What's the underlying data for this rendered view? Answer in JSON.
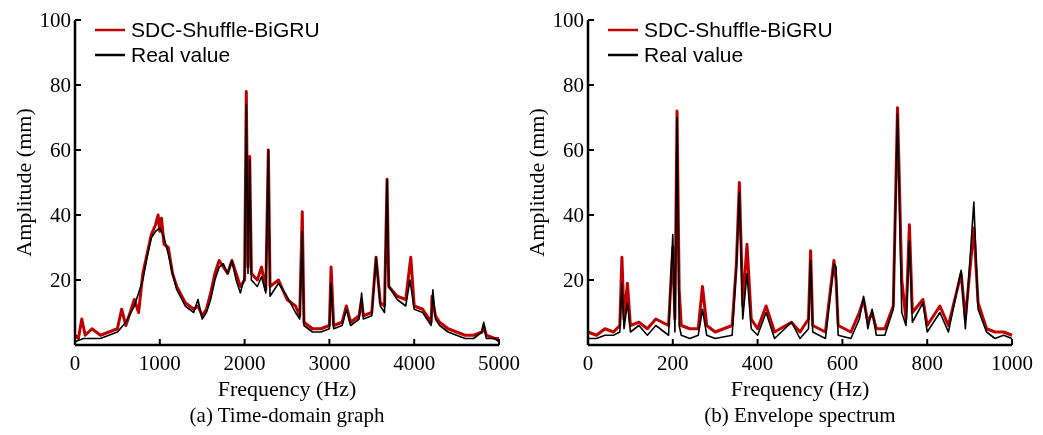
{
  "chart_data": [
    {
      "type": "line",
      "title": "(a) Time-domain graph",
      "xlabel": "Frequency (Hz)",
      "ylabel": "Amplitude (mm)",
      "xlim": [
        0,
        5000
      ],
      "xticks": [
        0,
        1000,
        2000,
        3000,
        4000,
        5000
      ],
      "ylim": [
        0,
        100
      ],
      "yticks": [
        20,
        40,
        60,
        80,
        100
      ],
      "grid": false,
      "legend": "top left",
      "line_style": "solid",
      "series": [
        {
          "name": "SDC-Shuffle-BiGRU",
          "color": "#c00000",
          "x": [
            0,
            40,
            80,
            120,
            200,
            300,
            400,
            500,
            550,
            600,
            700,
            750,
            800,
            850,
            900,
            950,
            980,
            1000,
            1020,
            1050,
            1100,
            1150,
            1200,
            1300,
            1400,
            1450,
            1500,
            1550,
            1600,
            1650,
            1700,
            1750,
            1800,
            1850,
            1900,
            1950,
            2000,
            2020,
            2040,
            2060,
            2080,
            2150,
            2200,
            2250,
            2280,
            2300,
            2400,
            2500,
            2600,
            2650,
            2680,
            2700,
            2800,
            2900,
            3000,
            3020,
            3050,
            3150,
            3200,
            3250,
            3350,
            3380,
            3400,
            3500,
            3550,
            3600,
            3650,
            3680,
            3700,
            3800,
            3900,
            3960,
            4000,
            4100,
            4200,
            4210,
            4250,
            4300,
            4400,
            4500,
            4600,
            4700,
            4800,
            4820,
            4850,
            4950,
            5000
          ],
          "values": [
            3,
            2,
            8,
            3,
            5,
            3,
            4,
            5,
            11,
            6,
            14,
            10,
            22,
            28,
            34,
            37,
            40,
            35,
            39,
            31,
            30,
            22,
            18,
            13,
            11,
            12,
            9,
            11,
            16,
            22,
            26,
            24,
            22,
            26,
            22,
            18,
            20,
            78,
            24,
            58,
            22,
            20,
            24,
            17,
            60,
            18,
            20,
            14,
            12,
            9,
            41,
            7,
            5,
            5,
            6,
            24,
            6,
            7,
            12,
            7,
            9,
            14,
            9,
            10,
            27,
            13,
            12,
            51,
            18,
            15,
            14,
            27,
            12,
            11,
            7,
            15,
            9,
            7,
            5,
            4,
            3,
            3,
            4,
            6,
            3,
            2,
            2
          ]
        },
        {
          "name": "Real value",
          "color": "#000000",
          "x": [
            0,
            100,
            200,
            300,
            400,
            500,
            600,
            700,
            800,
            850,
            900,
            950,
            1000,
            1050,
            1100,
            1150,
            1200,
            1300,
            1400,
            1450,
            1500,
            1550,
            1600,
            1650,
            1700,
            1750,
            1800,
            1850,
            1900,
            1950,
            2000,
            2020,
            2040,
            2060,
            2080,
            2150,
            2200,
            2250,
            2280,
            2300,
            2400,
            2500,
            2600,
            2650,
            2680,
            2700,
            2800,
            2900,
            3000,
            3020,
            3050,
            3150,
            3200,
            3250,
            3350,
            3380,
            3400,
            3500,
            3550,
            3600,
            3650,
            3680,
            3700,
            3800,
            3900,
            3950,
            4000,
            4100,
            4200,
            4220,
            4250,
            4300,
            4400,
            4500,
            4600,
            4700,
            4800,
            4820,
            4850,
            4950,
            5000
          ],
          "values": [
            1,
            2,
            2,
            2,
            3,
            4,
            7,
            12,
            20,
            27,
            33,
            35,
            36,
            33,
            28,
            22,
            17,
            12,
            10,
            14,
            8,
            10,
            14,
            20,
            24,
            25,
            22,
            26,
            20,
            16,
            21,
            74,
            22,
            57,
            20,
            18,
            21,
            16,
            60,
            15,
            19,
            15,
            10,
            8,
            35,
            6,
            4,
            4,
            5,
            19,
            5,
            6,
            11,
            6,
            8,
            16,
            8,
            9,
            27,
            12,
            10,
            51,
            18,
            14,
            12,
            20,
            11,
            10,
            6,
            17,
            8,
            6,
            4,
            3,
            2,
            2,
            4,
            7,
            2,
            2,
            1
          ]
        }
      ]
    },
    {
      "type": "line",
      "title": "(b) Envelope spectrum",
      "xlabel": "Frequency (Hz)",
      "ylabel": "Amplitude (mm)",
      "xlim": [
        0,
        1000
      ],
      "xticks": [
        0,
        200,
        400,
        600,
        800,
        1000
      ],
      "ylim": [
        0,
        100
      ],
      "yticks": [
        20,
        40,
        60,
        80,
        100
      ],
      "grid": false,
      "legend": "top left",
      "line_style": "solid",
      "series": [
        {
          "name": "SDC-Shuffle-BiGRU",
          "color": "#c00000",
          "x": [
            0,
            20,
            40,
            60,
            75,
            80,
            85,
            93,
            100,
            120,
            140,
            160,
            190,
            200,
            205,
            210,
            215,
            220,
            240,
            260,
            270,
            280,
            300,
            340,
            350,
            357,
            365,
            375,
            385,
            400,
            420,
            440,
            480,
            500,
            520,
            525,
            530,
            560,
            580,
            585,
            590,
            620,
            640,
            650,
            660,
            670,
            680,
            700,
            720,
            730,
            740,
            750,
            758,
            765,
            790,
            800,
            830,
            850,
            880,
            890,
            910,
            920,
            940,
            960,
            980,
            1000
          ],
          "values": [
            4,
            3,
            5,
            4,
            6,
            27,
            8,
            19,
            6,
            7,
            5,
            8,
            6,
            30,
            8,
            72,
            17,
            6,
            5,
            5,
            18,
            6,
            4,
            6,
            25,
            50,
            12,
            31,
            8,
            5,
            12,
            4,
            7,
            4,
            8,
            29,
            6,
            4,
            26,
            20,
            6,
            4,
            10,
            14,
            7,
            10,
            5,
            5,
            12,
            73,
            20,
            8,
            37,
            10,
            14,
            6,
            12,
            6,
            22,
            8,
            36,
            13,
            5,
            4,
            4,
            3
          ]
        },
        {
          "name": "Real value",
          "color": "#000000",
          "x": [
            0,
            20,
            40,
            60,
            75,
            80,
            85,
            93,
            100,
            120,
            140,
            160,
            190,
            200,
            205,
            210,
            215,
            220,
            240,
            260,
            270,
            280,
            300,
            340,
            350,
            357,
            365,
            375,
            385,
            400,
            420,
            440,
            480,
            500,
            520,
            525,
            530,
            560,
            580,
            585,
            590,
            620,
            640,
            650,
            660,
            670,
            680,
            700,
            720,
            730,
            740,
            750,
            758,
            765,
            790,
            800,
            830,
            850,
            880,
            890,
            910,
            920,
            940,
            960,
            980,
            1000
          ],
          "values": [
            2,
            2,
            3,
            3,
            4,
            19,
            5,
            13,
            4,
            6,
            3,
            6,
            3,
            34,
            4,
            70,
            6,
            3,
            2,
            3,
            11,
            3,
            2,
            3,
            24,
            47,
            8,
            22,
            5,
            3,
            10,
            2,
            7,
            2,
            5,
            26,
            4,
            2,
            25,
            24,
            3,
            2,
            8,
            15,
            5,
            11,
            3,
            3,
            11,
            71,
            10,
            6,
            32,
            7,
            13,
            4,
            10,
            4,
            23,
            5,
            44,
            11,
            4,
            2,
            3,
            2
          ]
        }
      ]
    }
  ]
}
